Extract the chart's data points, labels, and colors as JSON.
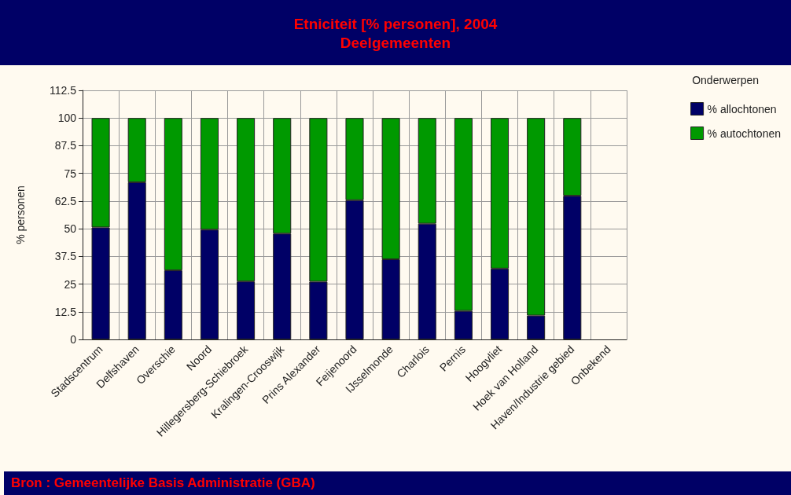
{
  "chart_data": {
    "type": "bar",
    "title": "Etniciteit [% personen], 2004",
    "subtitle": "Deelgemeenten",
    "ylabel": "% personen",
    "legend_title": "Onderwerpen",
    "annotations": [
      "Bron : Gemeentelijke Basis Administratie (GBA)"
    ],
    "categories": [
      "Stadscentrum",
      "Delfshaven",
      "Overschie",
      "Noord",
      "Hillegersberg-Schiebroek",
      "Kralingen-Crooswijk",
      "Prins Alexander",
      "Feijenoord",
      "IJsselmonde",
      "Charlois",
      "Pernis",
      "Hoogvliet",
      "Hoek van Holland",
      "Haven/Industrie gebied",
      "Onbekend"
    ],
    "series": [
      {
        "name": "% allochtonen",
        "color": "#000066",
        "values": [
          50.6,
          71,
          31.2,
          49.6,
          26.2,
          47.8,
          26.1,
          62.9,
          36.2,
          52.3,
          12.9,
          32,
          10.8,
          64.9,
          null
        ]
      },
      {
        "name": "% autochtonen",
        "color": "#009900",
        "values": [
          49.4,
          29,
          68.8,
          50.4,
          73.8,
          52.2,
          73.9,
          37.1,
          63.8,
          47.7,
          87.1,
          68,
          89.2,
          35.1,
          null
        ]
      }
    ],
    "stacked": true,
    "ylim": [
      0,
      112.5
    ],
    "yticks": [
      0,
      12.5,
      25,
      37.5,
      50,
      62.5,
      75,
      87.5,
      100,
      112.5
    ],
    "grid": true,
    "legend": "top right"
  }
}
